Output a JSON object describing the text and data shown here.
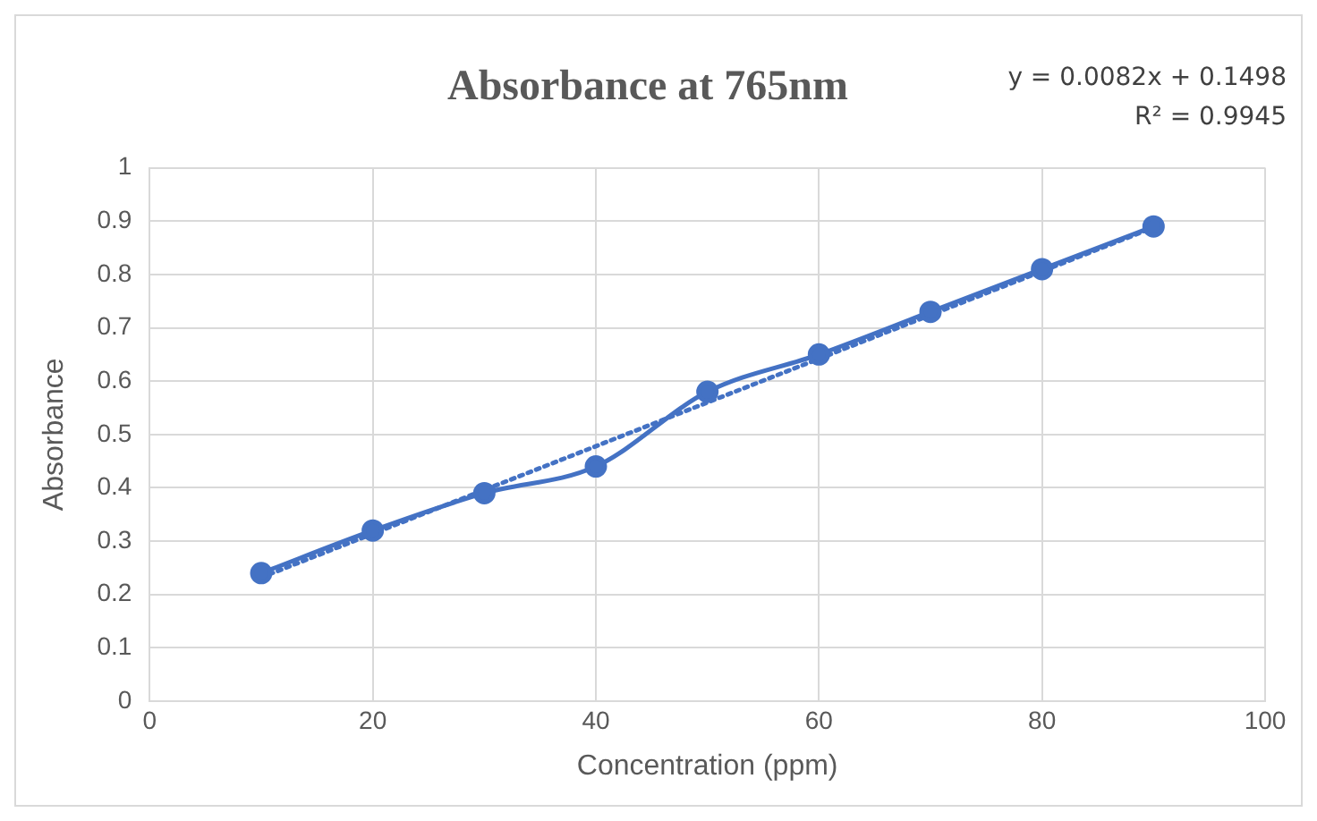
{
  "chart_data": {
    "type": "line",
    "title": "Absorbance at 765nm",
    "xlabel": "Concentration (ppm)",
    "ylabel": "Absorbance",
    "annotations": [
      "y = 0.0082x + 0.1498",
      "R² = 0.9945"
    ],
    "x": [
      10,
      20,
      30,
      40,
      50,
      60,
      70,
      80,
      90
    ],
    "series": [
      {
        "color": "#4472c4",
        "values": [
          0.24,
          0.32,
          0.39,
          0.44,
          0.58,
          0.65,
          0.73,
          0.81,
          0.89
        ],
        "marker": "circle",
        "line_style": "solid"
      },
      {
        "type": "line",
        "color": "#4472c4",
        "x": [
          10,
          90
        ],
        "values": [
          0.232,
          0.888
        ],
        "marker": "none",
        "line_style": "dotted"
      }
    ],
    "xlim": [
      0,
      100
    ],
    "xticks": [
      0,
      20,
      40,
      60,
      80,
      100
    ],
    "ylim": [
      0,
      1
    ],
    "yticks": [
      0,
      0.1,
      0.2,
      0.3,
      0.4,
      0.5,
      0.6,
      0.7,
      0.8,
      0.9,
      1
    ],
    "grid": true,
    "legend": false
  }
}
